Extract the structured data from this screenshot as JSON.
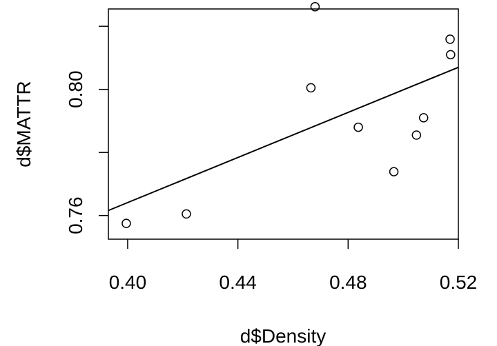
{
  "chart_data": {
    "type": "scatter",
    "title": "",
    "xlabel": "d$Density",
    "ylabel": "d$MATTR",
    "xlim": [
      0.393,
      0.52
    ],
    "ylim": [
      0.7525,
      0.8255
    ],
    "grid": false,
    "x_ticks": [
      0.4,
      0.44,
      0.48,
      0.52
    ],
    "x_tick_labels": [
      "0.40",
      "0.44",
      "0.48",
      "0.52"
    ],
    "y_ticks": [
      0.76,
      0.78,
      0.8,
      0.82
    ],
    "y_tick_labels": [
      "0.76",
      "",
      "0.80",
      ""
    ],
    "series": [
      {
        "points": [
          {
            "x": 0.3995,
            "y": 0.7575
          },
          {
            "x": 0.4213,
            "y": 0.7605
          },
          {
            "x": 0.4665,
            "y": 0.8005
          },
          {
            "x": 0.468,
            "y": 0.8262
          },
          {
            "x": 0.4837,
            "y": 0.788
          },
          {
            "x": 0.4966,
            "y": 0.7739
          },
          {
            "x": 0.5048,
            "y": 0.7855
          },
          {
            "x": 0.5074,
            "y": 0.791
          },
          {
            "x": 0.517,
            "y": 0.8159
          },
          {
            "x": 0.5172,
            "y": 0.811
          }
        ]
      }
    ],
    "fit_line": {
      "type": "linear",
      "x": [
        0.393,
        0.52
      ],
      "y": [
        0.7616,
        0.807
      ]
    }
  }
}
